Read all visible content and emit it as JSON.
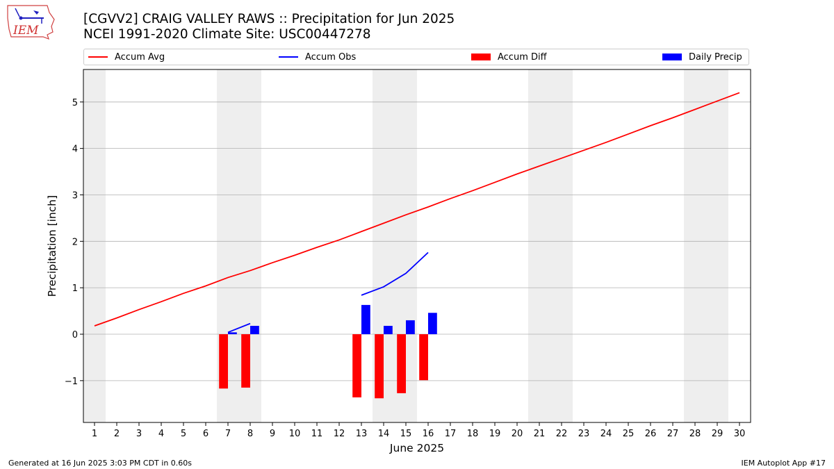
{
  "header": {
    "title_line1": "[CGVV2] CRAIG VALLEY RAWS :: Precipitation for Jun 2025",
    "title_line2": "NCEI 1991-2020 Climate Site: USC00447278"
  },
  "logo": {
    "text": "IEM",
    "icon": "iem-iowa-logo-icon"
  },
  "legend": [
    {
      "label": "Accum Avg",
      "kind": "line",
      "color": "#ff0000"
    },
    {
      "label": "Accum Obs",
      "kind": "line",
      "color": "#0000ff"
    },
    {
      "label": "Accum Diff",
      "kind": "bar",
      "color": "#ff0000"
    },
    {
      "label": "Daily Precip",
      "kind": "bar",
      "color": "#0000ff"
    }
  ],
  "footer": {
    "left": "Generated at 16 Jun 2025 3:03 PM CDT in 0.60s",
    "right": "IEM Autoplot App #17"
  },
  "chart_data": {
    "type": "bar",
    "xlabel": "June 2025",
    "ylabel": "Precipitation [inch]",
    "xlim": [
      0.5,
      30.5
    ],
    "ylim": [
      -1.9,
      5.7
    ],
    "x_ticks": [
      1,
      2,
      3,
      4,
      5,
      6,
      7,
      8,
      9,
      10,
      11,
      12,
      13,
      14,
      15,
      16,
      17,
      18,
      19,
      20,
      21,
      22,
      23,
      24,
      25,
      26,
      27,
      28,
      29,
      30
    ],
    "y_ticks": [
      -1,
      0,
      1,
      2,
      3,
      4,
      5
    ],
    "y_tick_labels": [
      "−1",
      "0",
      "1",
      "2",
      "3",
      "4",
      "5"
    ],
    "grid": "horizontal",
    "weekend_bands": [
      [
        0.5,
        1.5
      ],
      [
        6.5,
        8.5
      ],
      [
        13.5,
        15.5
      ],
      [
        20.5,
        22.5
      ],
      [
        27.5,
        29.5
      ]
    ],
    "colors": {
      "avg": "#ff0000",
      "obs": "#0000ff",
      "diff": "#ff0000",
      "daily": "#0000ff",
      "band": "#eeeeee",
      "grid": "#b0b0b0"
    },
    "series": [
      {
        "name": "Accum Avg",
        "kind": "line",
        "x": [
          1,
          2,
          3,
          4,
          5,
          6,
          7,
          8,
          9,
          10,
          11,
          12,
          13,
          14,
          15,
          16,
          17,
          18,
          19,
          20,
          21,
          22,
          23,
          24,
          25,
          26,
          27,
          28,
          29,
          30
        ],
        "values": [
          0.18,
          0.35,
          0.53,
          0.7,
          0.88,
          1.04,
          1.22,
          1.37,
          1.54,
          1.7,
          1.87,
          2.03,
          2.21,
          2.39,
          2.57,
          2.74,
          2.92,
          3.09,
          3.27,
          3.45,
          3.62,
          3.79,
          3.96,
          4.13,
          4.31,
          4.49,
          4.66,
          4.84,
          5.02,
          5.2
        ]
      },
      {
        "name": "Accum Obs",
        "kind": "line",
        "segments": [
          {
            "x": [
              7,
              8
            ],
            "values": [
              0.04,
              0.23
            ]
          },
          {
            "x": [
              13,
              14,
              15,
              16
            ],
            "values": [
              0.84,
              1.02,
              1.31,
              1.76
            ]
          }
        ]
      },
      {
        "name": "Accum Diff",
        "kind": "bar",
        "x": [
          7,
          8,
          13,
          14,
          15,
          16
        ],
        "values": [
          -1.17,
          -1.15,
          -1.36,
          -1.38,
          -1.27,
          -0.99
        ]
      },
      {
        "name": "Daily Precip",
        "kind": "bar",
        "x": [
          7,
          8,
          13,
          14,
          15,
          16
        ],
        "values": [
          0.04,
          0.18,
          0.63,
          0.18,
          0.3,
          0.46
        ]
      }
    ]
  }
}
